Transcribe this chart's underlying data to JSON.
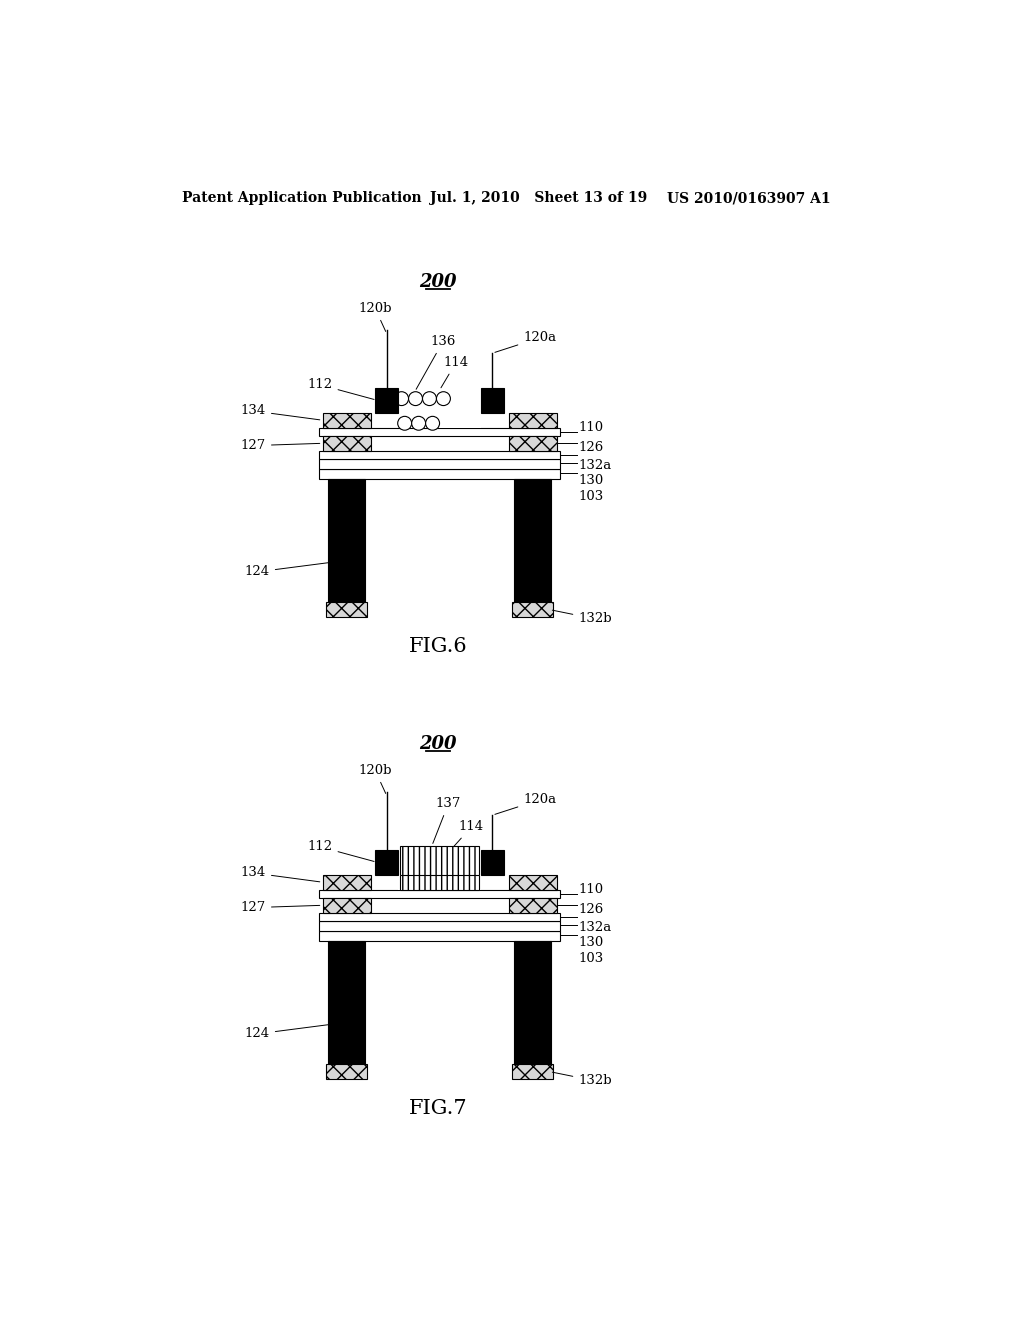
{
  "bg_color": "#ffffff",
  "header_left": "Patent Application Publication",
  "header_mid": "Jul. 1, 2010   Sheet 13 of 19",
  "header_right": "US 2010/0163907 A1",
  "fig6_label": "FIG.6",
  "fig7_label": "FIG.7"
}
